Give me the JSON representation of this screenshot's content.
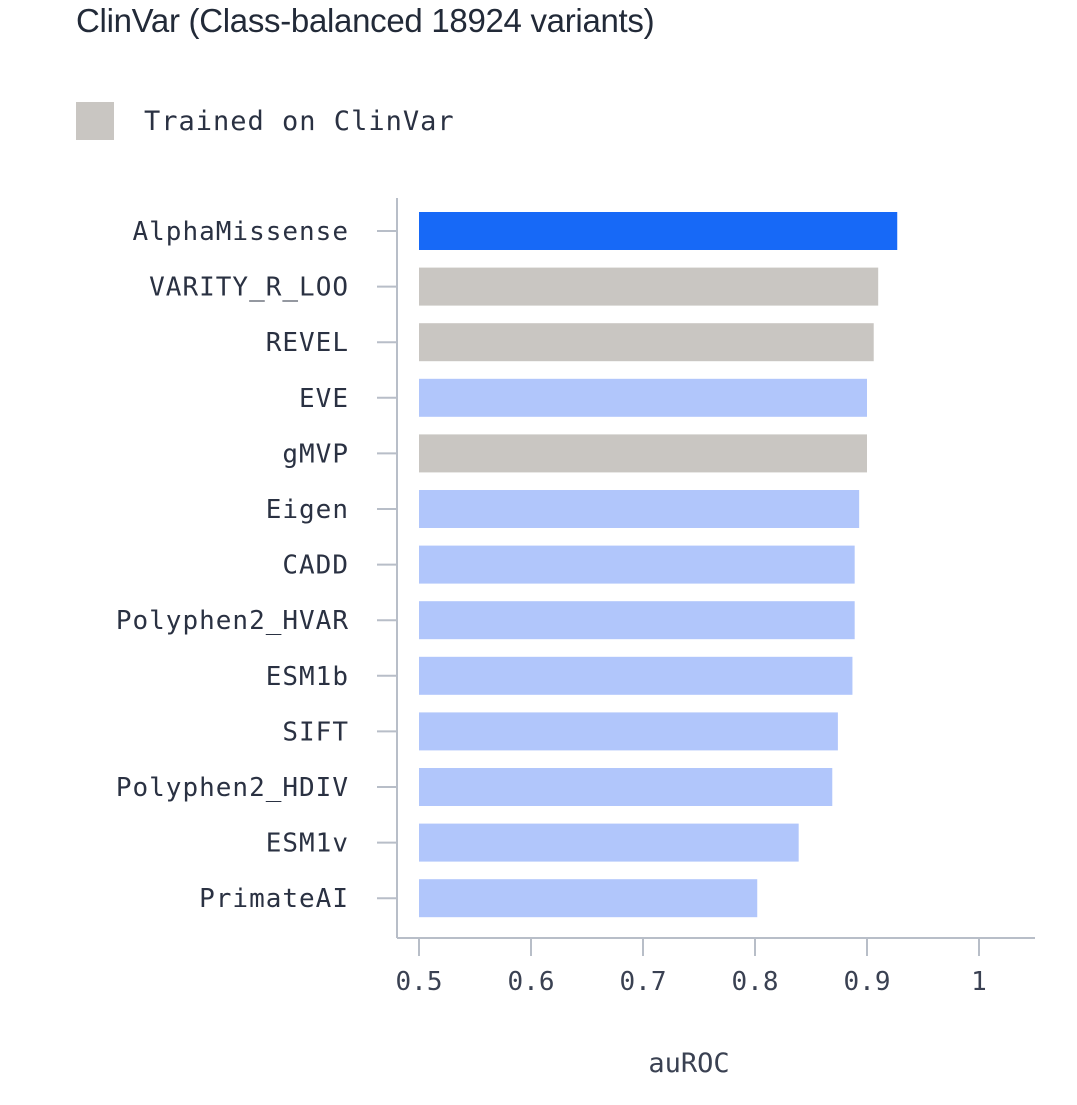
{
  "chart_data": {
    "type": "bar",
    "orientation": "horizontal",
    "title": "ClinVar (Class-balanced 18924 variants)",
    "legend": [
      {
        "label": "Trained on ClinVar",
        "color": "#c9c6c2"
      }
    ],
    "xlabel": "auROC",
    "ylabel": "",
    "xlim": [
      0.5,
      1.05
    ],
    "xticks": [
      {
        "value": 0.5,
        "label": "0.5"
      },
      {
        "value": 0.6,
        "label": "0.6"
      },
      {
        "value": 0.7,
        "label": "0.7"
      },
      {
        "value": 0.8,
        "label": "0.8"
      },
      {
        "value": 0.9,
        "label": "0.9"
      },
      {
        "value": 1.0,
        "label": "1"
      }
    ],
    "grid": false,
    "categories": [
      "AlphaMissense",
      "VARITY_R_LOO",
      "REVEL",
      "EVE",
      "gMVP",
      "Eigen",
      "CADD",
      "Polyphen2_HVAR",
      "ESM1b",
      "SIFT",
      "Polyphen2_HDIV",
      "ESM1v",
      "PrimateAI"
    ],
    "values": [
      0.927,
      0.91,
      0.906,
      0.9,
      0.9,
      0.893,
      0.889,
      0.889,
      0.887,
      0.874,
      0.869,
      0.839,
      0.802
    ],
    "groups": [
      "highlight",
      "clinvar",
      "clinvar",
      "other",
      "clinvar",
      "other",
      "other",
      "other",
      "other",
      "other",
      "other",
      "other",
      "other"
    ],
    "colors": {
      "highlight": "#1769f7",
      "clinvar": "#c9c6c2",
      "other": "#b1c6fb",
      "axis": "#b8bec8"
    }
  }
}
